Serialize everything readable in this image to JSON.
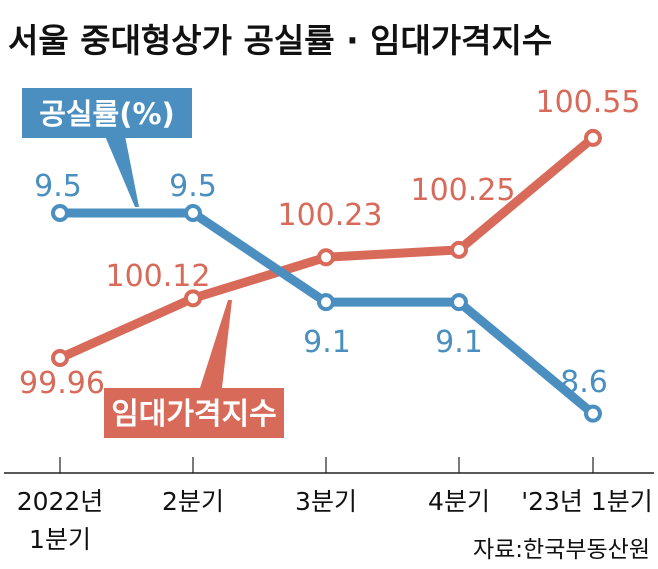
{
  "chart_data": {
    "type": "line",
    "title": "서울 중대형상가 공실률 · 임대가격지수",
    "categories": [
      [
        "2022년",
        "1분기"
      ],
      [
        "2분기"
      ],
      [
        "3분기"
      ],
      [
        "4분기"
      ],
      [
        "'23년 1분기"
      ]
    ],
    "series": [
      {
        "name": "공실률(%)",
        "color": "#4a8fc0",
        "values": [
          9.5,
          9.5,
          9.1,
          9.1,
          8.6
        ],
        "labels": [
          "9.5",
          "9.5",
          "9.1",
          "9.1",
          "8.6"
        ]
      },
      {
        "name": "임대가격지수",
        "color": "#d86a5a",
        "values": [
          99.96,
          100.12,
          100.23,
          100.25,
          100.55
        ],
        "labels": [
          "99.96",
          "100.12",
          "100.23",
          "100.25",
          "100.55"
        ]
      }
    ],
    "source": "자료:한국부동산원",
    "grid": false
  }
}
